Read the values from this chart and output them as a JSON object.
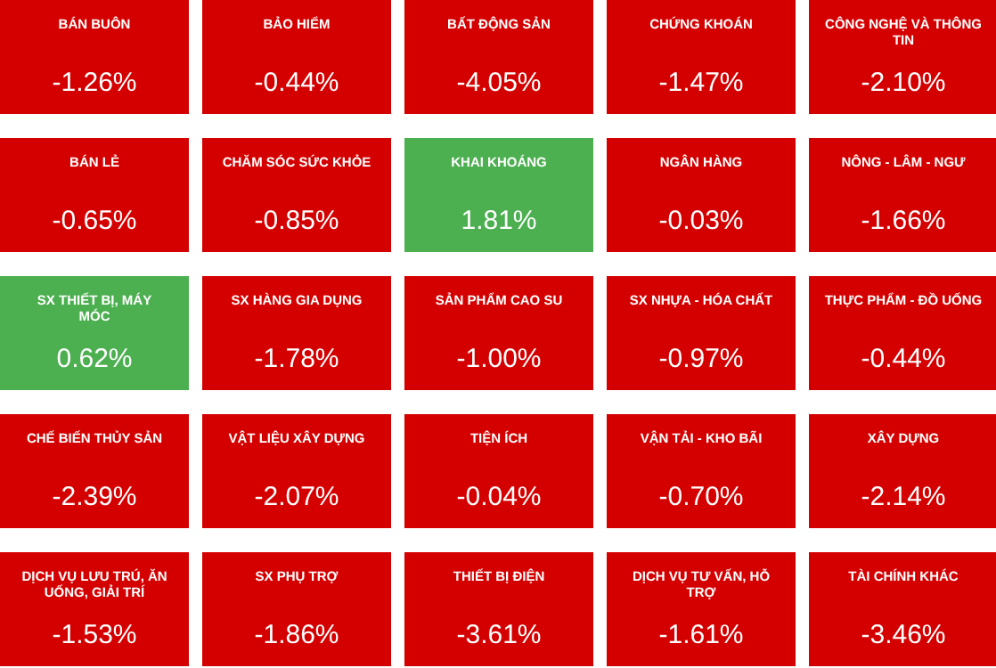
{
  "chart_data": {
    "type": "other",
    "categories": [
      "BÁN BUÔN",
      "BẢO HIỂM",
      "BẤT ĐỘNG SẢN",
      "CHỨNG KHOÁN",
      "CÔNG NGHỆ VÀ THÔNG TIN",
      "BÁN LẺ",
      "CHĂM SÓC SỨC KHỎE",
      "KHAI KHOÁNG",
      "NGÂN HÀNG",
      "NÔNG - LÂM - NGƯ",
      "SX THIẾT BỊ, MÁY MÓC",
      "SX HÀNG GIA DỤNG",
      "SẢN PHẨM CAO SU",
      "SX NHỰA - HÓA CHẤT",
      "THỰC PHẨM - ĐỒ UỐNG",
      "CHẾ BIẾN THỦY SẢN",
      "VẬT LIỆU XÂY DỰNG",
      "TIỆN ÍCH",
      "VẬN TẢI - KHO BÃI",
      "XÂY DỰNG",
      "DỊCH VỤ LƯU TRÚ, ĂN UỐNG, GIẢI TRÍ",
      "SX PHỤ TRỢ",
      "THIẾT BỊ ĐIỆN",
      "DỊCH VỤ TƯ VẤN, HỖ TRỢ",
      "TÀI CHÍNH KHÁC"
    ],
    "values": [
      -1.26,
      -0.44,
      -4.05,
      -1.47,
      -2.1,
      -0.65,
      -0.85,
      1.81,
      -0.03,
      -1.66,
      0.62,
      -1.78,
      -1.0,
      -0.97,
      -0.44,
      -2.39,
      -2.07,
      -0.04,
      -0.7,
      -2.14,
      -1.53,
      -1.86,
      -3.61,
      -1.61,
      -3.46
    ],
    "value_labels": [
      "-1.26%",
      "-0.44%",
      "-4.05%",
      "-1.47%",
      "-2.10%",
      "-0.65%",
      "-0.85%",
      "1.81%",
      "-0.03%",
      "-1.66%",
      "0.62%",
      "-1.78%",
      "-1.00%",
      "-0.97%",
      "-0.44%",
      "-2.39%",
      "-2.07%",
      "-0.04%",
      "-0.70%",
      "-2.14%",
      "-1.53%",
      "-1.86%",
      "-3.61%",
      "-1.61%",
      "-3.46%"
    ],
    "colors": [
      "#d40000",
      "#d40000",
      "#d40000",
      "#d40000",
      "#d40000",
      "#d40000",
      "#d40000",
      "#4caf50",
      "#d40000",
      "#d40000",
      "#4caf50",
      "#d40000",
      "#d40000",
      "#d40000",
      "#d40000",
      "#d40000",
      "#d40000",
      "#d40000",
      "#d40000",
      "#d40000",
      "#d40000",
      "#d40000",
      "#d40000",
      "#d40000",
      "#d40000"
    ]
  }
}
